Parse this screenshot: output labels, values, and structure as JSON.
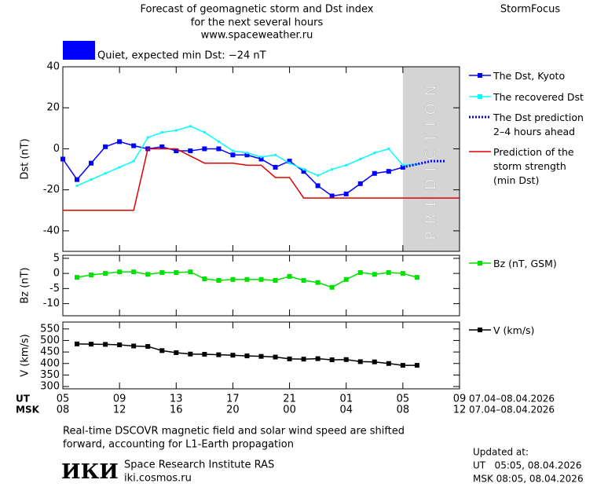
{
  "header": {
    "title_lines": [
      "Forecast of geomagnetic storm and Dst index",
      "for the next several hours",
      "www.spaceweather.ru"
    ],
    "brand": "StormFocus",
    "status": "Quiet, expected min Dst: −24 nT",
    "status_color": "#0000ff"
  },
  "chart_data": [
    {
      "type": "line",
      "ylabel": "Dst (nT)",
      "xlim": [
        0,
        28
      ],
      "ylim": [
        -50,
        40
      ],
      "yticks": [
        40,
        20,
        0,
        -20,
        -40
      ],
      "prediction": {
        "xlim": [
          24,
          28
        ],
        "label": "PREDICTION",
        "color": "#d4d4d4"
      },
      "series": [
        {
          "name": "The Dst, Kyoto",
          "color": "#0000ff",
          "marker": "square",
          "x": [
            0,
            1,
            2,
            3,
            4,
            5,
            6,
            7,
            8,
            9,
            10,
            11,
            12,
            13,
            14,
            15,
            16,
            17,
            18,
            19,
            20,
            21,
            22,
            23,
            24
          ],
          "values": [
            -5,
            -15,
            -7,
            1,
            3.5,
            1.5,
            0,
            1,
            -1,
            -1,
            0,
            0,
            -3,
            -3,
            -5,
            -9,
            -6,
            -11,
            -18,
            -23,
            -22,
            -17,
            -12,
            -11,
            -9
          ]
        },
        {
          "name": "The recovered Dst",
          "color": "#00ffff",
          "marker": "small",
          "x": [
            1,
            2,
            3,
            4,
            5,
            6,
            7,
            8,
            9,
            10,
            11,
            12,
            13,
            14,
            15,
            16,
            17,
            18,
            19,
            20,
            21,
            22,
            23,
            24,
            25
          ],
          "values": [
            -18,
            -15,
            -12,
            -9,
            -6,
            5.5,
            8,
            9,
            11,
            8,
            3.5,
            -1,
            -2,
            -4,
            -3,
            -7,
            -10,
            -13,
            -10,
            -8,
            -5,
            -2,
            0,
            -8,
            -7.5
          ]
        },
        {
          "name": "The Dst prediction\n2–4 hours ahead",
          "color": "#0000ff",
          "marker": "none",
          "dash": true,
          "x": [
            24,
            25,
            26,
            27
          ],
          "values": [
            -9,
            -7.5,
            -6,
            -6
          ]
        },
        {
          "name": "Prediction of the\nstorm strength\n(min Dst)",
          "color": "#e00000",
          "marker": "none",
          "x": [
            0,
            5,
            6,
            8,
            10,
            12,
            13,
            14,
            15,
            16,
            17,
            28
          ],
          "values": [
            -30,
            -30,
            0,
            0,
            -7,
            -7,
            -8,
            -8,
            -14,
            -14,
            -24,
            -24
          ]
        }
      ]
    },
    {
      "type": "line",
      "ylabel": "Bz (nT)",
      "xlim": [
        0,
        28
      ],
      "ylim": [
        -14,
        6
      ],
      "yticks": [
        5,
        0,
        -5,
        -10
      ],
      "series": [
        {
          "name": "Bz (nT, GSM)",
          "color": "#00e000",
          "marker": "square",
          "x": [
            1,
            2,
            3,
            4,
            5,
            6,
            7,
            8,
            9,
            10,
            11,
            12,
            13,
            14,
            15,
            16,
            17,
            18,
            19,
            20,
            21,
            22,
            23,
            24,
            25
          ],
          "values": [
            -1.3,
            -0.5,
            0,
            0.5,
            0.5,
            -0.3,
            0.3,
            0.3,
            0.5,
            -1.8,
            -2.3,
            -2,
            -2,
            -2,
            -2.3,
            -1,
            -2.3,
            -3,
            -4.6,
            -2,
            0.3,
            -0.3,
            0.3,
            0,
            -1.3
          ]
        }
      ]
    },
    {
      "type": "line",
      "ylabel": "V (km/s)",
      "xlim": [
        0,
        28
      ],
      "ylim": [
        290,
        580
      ],
      "yticks": [
        550,
        500,
        450,
        400,
        350,
        300
      ],
      "xticks": [
        {
          "value": 0,
          "label": "05"
        },
        {
          "value": 4,
          "label": "09"
        },
        {
          "value": 8,
          "label": "13"
        },
        {
          "value": 12,
          "label": "17"
        },
        {
          "value": 16,
          "label": "21"
        },
        {
          "value": 20,
          "label": "01"
        },
        {
          "value": 24,
          "label": "05"
        },
        {
          "value": 28,
          "label": "09"
        }
      ],
      "msk_xticks": [
        {
          "value": 0,
          "label": "08"
        },
        {
          "value": 4,
          "label": "12"
        },
        {
          "value": 8,
          "label": "16"
        },
        {
          "value": 12,
          "label": "20"
        },
        {
          "value": 16,
          "label": "00"
        },
        {
          "value": 20,
          "label": "04"
        },
        {
          "value": 24,
          "label": "08"
        },
        {
          "value": 28,
          "label": "12"
        }
      ],
      "xtick_row_labels": [
        "UT",
        "MSK"
      ],
      "date_range": [
        "07.04–08.04.2026",
        "07.04–08.04.2026"
      ],
      "series": [
        {
          "name": "V (km/s)",
          "color": "#000000",
          "marker": "square",
          "x": [
            1,
            2,
            3,
            4,
            5,
            6,
            7,
            8,
            9,
            10,
            11,
            12,
            13,
            14,
            15,
            16,
            17,
            18,
            19,
            20,
            21,
            22,
            23,
            24,
            25
          ],
          "values": [
            485,
            484,
            483,
            481,
            476,
            474,
            456,
            447,
            441,
            440,
            438,
            436,
            433,
            431,
            428,
            420,
            419,
            421,
            416,
            417,
            408,
            407,
            400,
            392,
            392
          ]
        }
      ]
    }
  ],
  "footer": {
    "note_lines": [
      "Real-time DSCOVR magnetic field and solar wind speed are shifted",
      "forward, accounting for L1-Earth propagation"
    ],
    "logo": "ИКИ",
    "institute": "Space Research Institute RAS",
    "site": "iki.cosmos.ru",
    "updated_lines": [
      "Updated at:",
      "UT   05:05, 08.04.2026",
      "MSK 08:05, 08.04.2026"
    ]
  }
}
